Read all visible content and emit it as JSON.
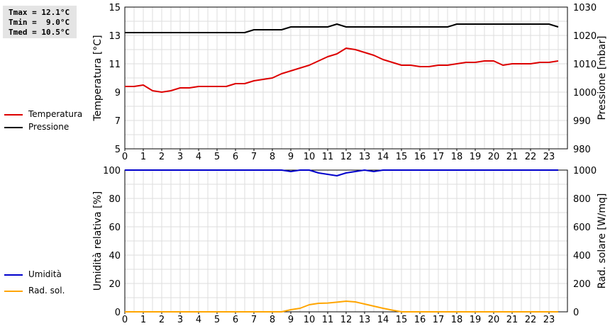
{
  "stats": {
    "tmax": "Tmax = 12.1°C",
    "tmin": "Tmin =  9.0°C",
    "tmed": "Tmed = 10.5°C"
  },
  "legend_top": {
    "items": [
      {
        "label": "Temperatura",
        "color": "#dd0000"
      },
      {
        "label": "Pressione",
        "color": "#000000"
      }
    ]
  },
  "legend_bottom": {
    "items": [
      {
        "label": "Umidità",
        "color": "#0000cc"
      },
      {
        "label": "Rad. sol.",
        "color": "#ffa500"
      }
    ]
  },
  "chart_data": [
    {
      "type": "line",
      "x_ticks": [
        "0",
        "1",
        "2",
        "3",
        "4",
        "5",
        "6",
        "7",
        "8",
        "9",
        "10",
        "11",
        "12",
        "13",
        "14",
        "15",
        "16",
        "17",
        "18",
        "19",
        "20",
        "21",
        "22",
        "23"
      ],
      "xlim": [
        0,
        24
      ],
      "ylabel_left": "Temperatura [°C]",
      "ylabel_right": "Pressione [mbar]",
      "ylim_left": [
        5,
        15
      ],
      "yticks_left": [
        "5",
        "7",
        "9",
        "11",
        "13",
        "15"
      ],
      "ylim_right": [
        980,
        1030
      ],
      "yticks_right": [
        "980",
        "990",
        "1000",
        "1010",
        "1020",
        "1030"
      ],
      "grid": true,
      "series": [
        {
          "name": "Temperatura",
          "axis": "left",
          "color": "#dd0000",
          "x": [
            0,
            0.5,
            1,
            1.5,
            2,
            2.5,
            3,
            3.5,
            4,
            4.5,
            5,
            5.5,
            6,
            6.5,
            7,
            7.5,
            8,
            8.5,
            9,
            9.5,
            10,
            10.5,
            11,
            11.5,
            12,
            12.5,
            13,
            13.5,
            14,
            14.5,
            15,
            15.5,
            16,
            16.5,
            17,
            17.5,
            18,
            18.5,
            19,
            19.5,
            20,
            20.5,
            21,
            21.5,
            22,
            22.5,
            23,
            23.5
          ],
          "values": [
            9.4,
            9.4,
            9.5,
            9.1,
            9.0,
            9.1,
            9.3,
            9.3,
            9.4,
            9.4,
            9.4,
            9.4,
            9.6,
            9.6,
            9.8,
            9.9,
            10.0,
            10.3,
            10.5,
            10.7,
            10.9,
            11.2,
            11.5,
            11.7,
            12.1,
            12.0,
            11.8,
            11.6,
            11.3,
            11.1,
            10.9,
            10.9,
            10.8,
            10.8,
            10.9,
            10.9,
            11.0,
            11.1,
            11.1,
            11.2,
            11.2,
            10.9,
            11.0,
            11.0,
            11.0,
            11.1,
            11.1,
            11.2
          ]
        },
        {
          "name": "Pressione",
          "axis": "right",
          "color": "#000000",
          "x": [
            0,
            0.5,
            1,
            1.5,
            2,
            2.5,
            3,
            3.5,
            4,
            4.5,
            5,
            5.5,
            6,
            6.5,
            7,
            7.5,
            8,
            8.5,
            9,
            9.5,
            10,
            10.5,
            11,
            11.5,
            12,
            12.5,
            13,
            13.5,
            14,
            14.5,
            15,
            15.5,
            16,
            16.5,
            17,
            17.5,
            18,
            18.5,
            19,
            19.5,
            20,
            20.5,
            21,
            21.5,
            22,
            22.5,
            23,
            23.5
          ],
          "values": [
            1021,
            1021,
            1021,
            1021,
            1021,
            1021,
            1021,
            1021,
            1021,
            1021,
            1021,
            1021,
            1021,
            1021,
            1022,
            1022,
            1022,
            1022,
            1023,
            1023,
            1023,
            1023,
            1023,
            1024,
            1023,
            1023,
            1023,
            1023,
            1023,
            1023,
            1023,
            1023,
            1023,
            1023,
            1023,
            1023,
            1024,
            1024,
            1024,
            1024,
            1024,
            1024,
            1024,
            1024,
            1024,
            1024,
            1024,
            1023
          ]
        }
      ]
    },
    {
      "type": "line",
      "x_ticks": [
        "0",
        "1",
        "2",
        "3",
        "4",
        "5",
        "6",
        "7",
        "8",
        "9",
        "10",
        "11",
        "12",
        "13",
        "14",
        "15",
        "16",
        "17",
        "18",
        "19",
        "20",
        "21",
        "22",
        "23"
      ],
      "xlim": [
        0,
        24
      ],
      "ylabel_left": "Umidità relativa [%]",
      "ylabel_right": "Rad. solare [W/mq]",
      "ylim_left": [
        0,
        100
      ],
      "yticks_left": [
        "0",
        "20",
        "40",
        "60",
        "80",
        "100"
      ],
      "ylim_right": [
        0,
        1000
      ],
      "yticks_right": [
        "0",
        "200",
        "400",
        "600",
        "800",
        "1000"
      ],
      "grid": true,
      "series": [
        {
          "name": "Umidità",
          "axis": "left",
          "color": "#0000cc",
          "x": [
            0,
            1,
            2,
            3,
            4,
            5,
            6,
            7,
            8,
            8.5,
            9,
            9.5,
            10,
            10.5,
            11,
            11.5,
            12,
            12.5,
            13,
            13.5,
            14,
            14.5,
            15,
            16,
            17,
            18,
            19,
            20,
            21,
            22,
            23,
            23.5
          ],
          "values": [
            100,
            100,
            100,
            100,
            100,
            100,
            100,
            100,
            100,
            100,
            99,
            100,
            100,
            98,
            97,
            96,
            98,
            99,
            100,
            99,
            100,
            100,
            100,
            100,
            100,
            100,
            100,
            100,
            100,
            100,
            100,
            100
          ]
        },
        {
          "name": "Rad. sol.",
          "axis": "right",
          "color": "#ffa500",
          "x": [
            0,
            1,
            2,
            3,
            4,
            5,
            6,
            7,
            8,
            8.5,
            9,
            9.5,
            10,
            10.5,
            11,
            11.5,
            12,
            12.5,
            13,
            13.5,
            14,
            14.5,
            15,
            16,
            17,
            18,
            19,
            20,
            21,
            22,
            23,
            23.5
          ],
          "values": [
            0,
            0,
            0,
            0,
            0,
            0,
            0,
            0,
            0,
            0,
            15,
            25,
            50,
            60,
            62,
            68,
            75,
            70,
            55,
            40,
            25,
            12,
            0,
            0,
            0,
            0,
            0,
            0,
            0,
            0,
            0,
            0
          ]
        }
      ]
    }
  ]
}
